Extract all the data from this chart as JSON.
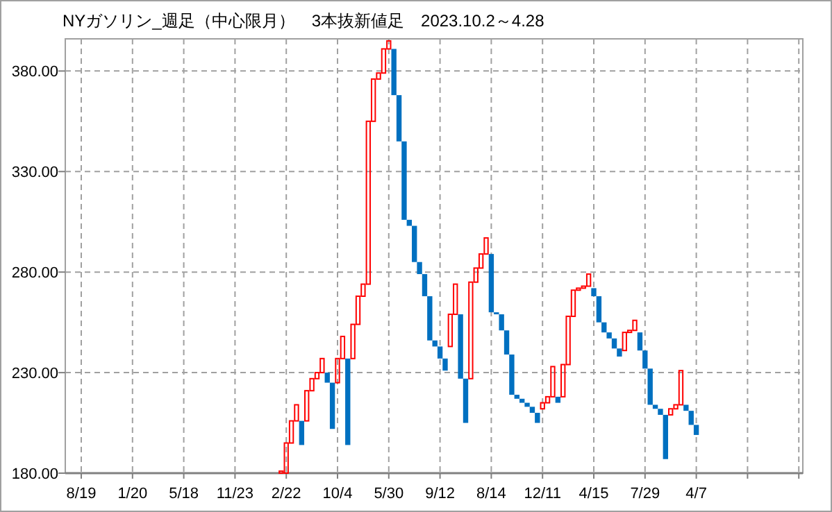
{
  "chart_data": {
    "type": "candlestick",
    "title": "NYガソリン_週足（中心限月）　3本抜新値足　2023.10.2～4.28",
    "categories": [
      "8/19",
      null,
      null,
      null,
      null,
      null,
      null,
      null,
      null,
      null,
      "1/20",
      null,
      null,
      null,
      null,
      null,
      null,
      null,
      null,
      null,
      "5/18",
      null,
      null,
      null,
      null,
      null,
      null,
      null,
      null,
      null,
      "11/23",
      null,
      null,
      null,
      null,
      null,
      null,
      null,
      null,
      null,
      "2/22",
      null,
      null,
      null,
      null,
      null,
      null,
      null,
      null,
      null,
      "10/4",
      null,
      null,
      null,
      null,
      null,
      null,
      null,
      null,
      null,
      "5/30",
      null,
      null,
      null,
      null,
      null,
      null,
      null,
      null,
      null,
      "9/12",
      null,
      null,
      null,
      null,
      null,
      null,
      null,
      null,
      null,
      "8/14",
      null,
      null,
      null,
      null,
      null,
      null,
      null,
      null,
      null,
      "12/11",
      null,
      null,
      null,
      null,
      null,
      null,
      null,
      null,
      null,
      "4/15",
      null,
      null,
      null,
      null,
      null,
      null,
      null,
      null,
      null,
      "7/29",
      null,
      null,
      null,
      null,
      null,
      null,
      null,
      null,
      null,
      "4/7",
      null,
      null,
      null,
      null,
      null,
      null,
      null,
      null,
      null,
      null,
      null,
      null,
      null,
      null,
      null,
      null,
      null,
      null,
      null,
      null
    ],
    "ohlc": [
      null,
      null,
      null,
      null,
      null,
      null,
      null,
      null,
      null,
      null,
      null,
      null,
      null,
      null,
      null,
      null,
      null,
      null,
      null,
      null,
      null,
      null,
      null,
      null,
      null,
      null,
      null,
      null,
      null,
      null,
      null,
      null,
      null,
      null,
      null,
      null,
      null,
      null,
      null,
      [
        180,
        181,
        180,
        181
      ],
      [
        180,
        195,
        180,
        195
      ],
      [
        195,
        206,
        195,
        206
      ],
      [
        206,
        214,
        206,
        214
      ],
      [
        206,
        206,
        194,
        194
      ],
      [
        206,
        221,
        206,
        221
      ],
      [
        221,
        227,
        221,
        227
      ],
      [
        227,
        230,
        227,
        230
      ],
      [
        230,
        237,
        230,
        237
      ],
      [
        230,
        230,
        225,
        225
      ],
      [
        225,
        225,
        202,
        202
      ],
      [
        225,
        237,
        225,
        237
      ],
      [
        237,
        248,
        237,
        248
      ],
      [
        237,
        237,
        194,
        194
      ],
      [
        237,
        254,
        237,
        254
      ],
      [
        254,
        268,
        254,
        268
      ],
      [
        268,
        274,
        268,
        274
      ],
      [
        274,
        355,
        274,
        355
      ],
      [
        355,
        376,
        355,
        376
      ],
      [
        376,
        379,
        376,
        379
      ],
      [
        379,
        391,
        379,
        391
      ],
      [
        391,
        395,
        391,
        395
      ],
      [
        391,
        391,
        368,
        368
      ],
      [
        368,
        368,
        345,
        345
      ],
      [
        345,
        345,
        306,
        306
      ],
      [
        306,
        306,
        303,
        303
      ],
      [
        303,
        303,
        285,
        285
      ],
      [
        285,
        285,
        279,
        279
      ],
      [
        279,
        279,
        268,
        268
      ],
      [
        268,
        268,
        246,
        246
      ],
      [
        246,
        246,
        243,
        243
      ],
      [
        243,
        243,
        237,
        237
      ],
      [
        237,
        237,
        231,
        231
      ],
      [
        243,
        259,
        243,
        259
      ],
      [
        259,
        274,
        259,
        274
      ],
      [
        259,
        259,
        227,
        227
      ],
      [
        227,
        227,
        205,
        205
      ],
      [
        227,
        275,
        227,
        275
      ],
      [
        275,
        282,
        275,
        282
      ],
      [
        282,
        289,
        282,
        289
      ],
      [
        289,
        297,
        289,
        297
      ],
      [
        289,
        289,
        260,
        260
      ],
      [
        260,
        260,
        259,
        259
      ],
      [
        259,
        259,
        251,
        251
      ],
      [
        251,
        251,
        239,
        239
      ],
      [
        239,
        239,
        219,
        219
      ],
      [
        219,
        219,
        217,
        217
      ],
      [
        217,
        217,
        215,
        215
      ],
      [
        215,
        215,
        213,
        213
      ],
      [
        213,
        213,
        210,
        210
      ],
      [
        210,
        210,
        205,
        205
      ],
      [
        212,
        215,
        212,
        215
      ],
      [
        215,
        218,
        215,
        218
      ],
      [
        218,
        233,
        218,
        233
      ],
      [
        218,
        218,
        215,
        215
      ],
      [
        218,
        234,
        218,
        234
      ],
      [
        234,
        258,
        234,
        258
      ],
      [
        258,
        271,
        258,
        271
      ],
      [
        271,
        272,
        271,
        272
      ],
      [
        272,
        273,
        272,
        273
      ],
      [
        273,
        279,
        273,
        279
      ],
      [
        272,
        272,
        268,
        268
      ],
      [
        268,
        268,
        255,
        255
      ],
      [
        255,
        255,
        250,
        250
      ],
      [
        250,
        250,
        247,
        247
      ],
      [
        247,
        247,
        242,
        242
      ],
      [
        242,
        242,
        238,
        238
      ],
      [
        241,
        250,
        241,
        250
      ],
      [
        250,
        251,
        250,
        251
      ],
      [
        251,
        256,
        251,
        256
      ],
      [
        250,
        250,
        241,
        241
      ],
      [
        241,
        241,
        232,
        232
      ],
      [
        232,
        232,
        214,
        214
      ],
      [
        214,
        214,
        212,
        212
      ],
      [
        212,
        212,
        209,
        209
      ],
      [
        209,
        209,
        187,
        187
      ],
      [
        209,
        212,
        209,
        212
      ],
      [
        212,
        214,
        212,
        214
      ],
      [
        214,
        231,
        214,
        231
      ],
      [
        214,
        214,
        211,
        211
      ],
      [
        211,
        211,
        204,
        204
      ],
      [
        204,
        204,
        199,
        199
      ],
      null,
      null,
      null,
      null,
      null,
      null,
      null,
      null,
      null,
      null,
      null,
      null,
      null,
      null,
      null,
      null,
      null,
      null,
      null,
      null
    ],
    "colors": [
      null,
      null,
      null,
      null,
      null,
      null,
      null,
      null,
      null,
      null,
      null,
      null,
      null,
      null,
      null,
      null,
      null,
      null,
      null,
      null,
      null,
      null,
      null,
      null,
      null,
      null,
      null,
      null,
      null,
      null,
      null,
      null,
      null,
      null,
      null,
      null,
      null,
      null,
      null,
      "#ff0000",
      "#ff0000",
      "#ff0000",
      "#ff0000",
      "#0070c0",
      "#ff0000",
      "#ff0000",
      "#ff0000",
      "#ff0000",
      "#0070c0",
      "#0070c0",
      "#ff0000",
      "#ff0000",
      "#0070c0",
      "#ff0000",
      "#ff0000",
      "#ff0000",
      "#ff0000",
      "#ff0000",
      "#ff0000",
      "#ff0000",
      "#ff0000",
      "#0070c0",
      "#0070c0",
      "#0070c0",
      "#0070c0",
      "#0070c0",
      "#0070c0",
      "#0070c0",
      "#0070c0",
      "#0070c0",
      "#0070c0",
      "#0070c0",
      "#ff0000",
      "#ff0000",
      "#0070c0",
      "#0070c0",
      "#ff0000",
      "#ff0000",
      "#ff0000",
      "#ff0000",
      "#0070c0",
      "#0070c0",
      "#0070c0",
      "#0070c0",
      "#0070c0",
      "#0070c0",
      "#0070c0",
      "#0070c0",
      "#0070c0",
      "#0070c0",
      "#ff0000",
      "#ff0000",
      "#ff0000",
      "#0070c0",
      "#ff0000",
      "#ff0000",
      "#ff0000",
      "#ff0000",
      "#ff0000",
      "#ff0000",
      "#0070c0",
      "#0070c0",
      "#0070c0",
      "#0070c0",
      "#0070c0",
      "#0070c0",
      "#ff0000",
      "#ff0000",
      "#ff0000",
      "#0070c0",
      "#0070c0",
      "#0070c0",
      "#0070c0",
      "#0070c0",
      "#0070c0",
      "#ff0000",
      "#ff0000",
      "#ff0000",
      "#0070c0",
      "#0070c0",
      "#0070c0",
      null,
      null,
      null,
      null,
      null,
      null,
      null,
      null,
      null,
      null,
      null,
      null,
      null,
      null,
      null,
      null,
      null,
      null,
      null,
      null
    ],
    "ylim": [
      180,
      396
    ],
    "yticks": [
      {
        "value": 180,
        "label": "180.00"
      },
      {
        "value": 230,
        "label": "230.00"
      },
      {
        "value": 280,
        "label": "280.00"
      },
      {
        "value": 330,
        "label": "330.00"
      },
      {
        "value": 380,
        "label": "380.00"
      }
    ],
    "grid": true
  }
}
